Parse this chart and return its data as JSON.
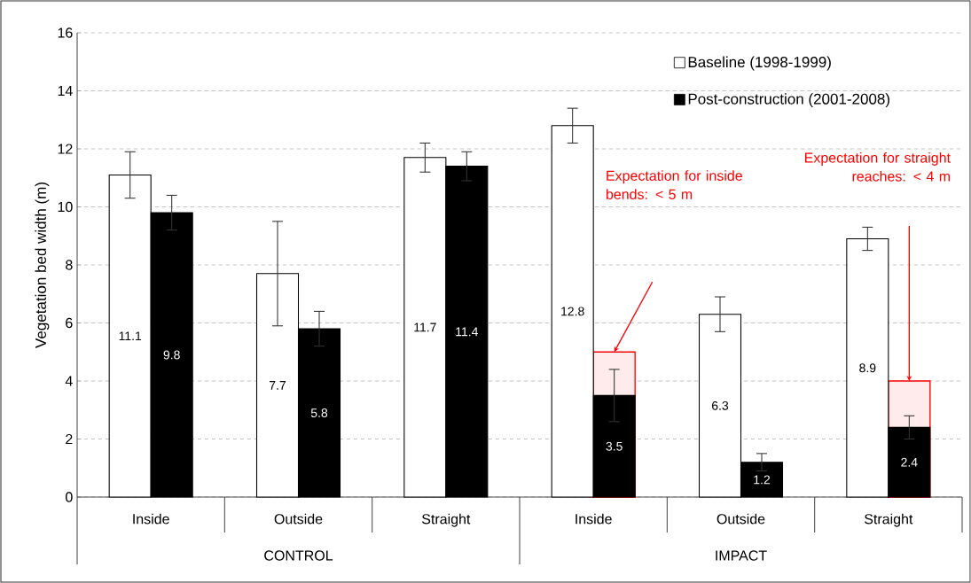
{
  "chart_data": {
    "type": "bar",
    "ylabel": "Vegetation bed width (m)",
    "categories": [
      "Inside",
      "Outside",
      "Straight",
      "Inside",
      "Outside",
      "Straight"
    ],
    "series": [
      {
        "name": "Baseline (1998-1999)",
        "color": "#ffffff",
        "values": [
          11.1,
          7.7,
          11.7,
          12.8,
          6.3,
          8.9
        ],
        "errors": [
          0.8,
          1.8,
          0.5,
          0.6,
          0.6,
          0.4
        ],
        "value_labels": [
          "11.1",
          "7.7",
          "11.7",
          "12.8",
          "6.3",
          "8.9"
        ]
      },
      {
        "name": "Post-construction (2001-2008)",
        "color": "#000000",
        "values": [
          9.8,
          5.8,
          11.4,
          3.5,
          1.2,
          2.4
        ],
        "errors": [
          0.6,
          0.6,
          0.5,
          0.9,
          0.3,
          0.4
        ],
        "value_labels": [
          "9.8",
          "5.8",
          "11.4",
          "3.5",
          "1.2",
          "2.4"
        ]
      },
      {
        "color": "#ff0000",
        "values": [
          null,
          null,
          null,
          5,
          null,
          4
        ]
      }
    ],
    "ylim": [
      0,
      16
    ],
    "yticks": [
      0,
      2,
      4,
      6,
      8,
      10,
      12,
      14,
      16
    ],
    "grid": "y",
    "legend": "top right",
    "annotations": [
      "CONTROL",
      "IMPACT",
      "Expectation for inside bends: < 5 m",
      "Expectation for straight reaches: < 4 m"
    ]
  }
}
